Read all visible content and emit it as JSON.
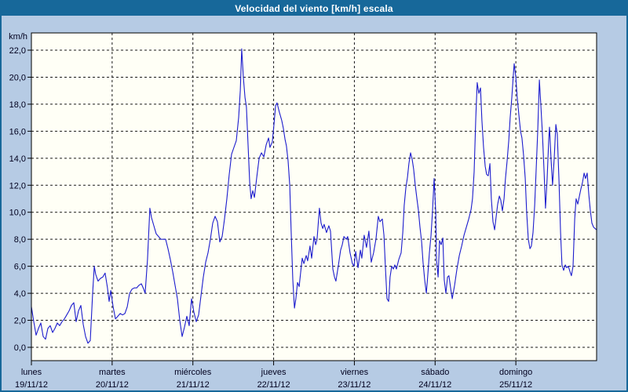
{
  "window": {
    "title": "Velocidad del viento [km/h] escala"
  },
  "colors": {
    "titlebar_bg": "#17689a",
    "frame_bg": "#b6cbe4",
    "plot_bg": "#fffff6",
    "line": "#1c1ccd",
    "grid": "#1a1a1a",
    "axis": "#000000",
    "text": "#00001e",
    "title_text": "#ffffff"
  },
  "chart_data": {
    "type": "line",
    "title": "Velocidad del viento [km/h] escala",
    "ylabel": "km/h",
    "xlabel": "",
    "ylim": [
      0,
      22
    ],
    "y_tick_step": 2,
    "y_tick_labels": [
      "0,0",
      "2,0",
      "4,0",
      "6,0",
      "8,0",
      "10,0",
      "12,0",
      "14,0",
      "16,0",
      "18,0",
      "20,0",
      "22,0"
    ],
    "x_range_hours": [
      0,
      168
    ],
    "grid": "dashed",
    "legend_position": "none",
    "x_days": [
      {
        "name": "lunes",
        "date": "19/11/12"
      },
      {
        "name": "martes",
        "date": "20/11/12"
      },
      {
        "name": "miércoles",
        "date": "21/11/12"
      },
      {
        "name": "jueves",
        "date": "22/11/12"
      },
      {
        "name": "viernes",
        "date": "23/11/12"
      },
      {
        "name": "sábado",
        "date": "24/11/12"
      },
      {
        "name": "domingo",
        "date": "25/11/12"
      }
    ],
    "series": [
      {
        "name": "Velocidad del viento [km/h]",
        "color": "#1c1ccd",
        "points_hours_kmh": [
          [
            0,
            3
          ],
          [
            0.7,
            1.9
          ],
          [
            1.4,
            0.9
          ],
          [
            2.1,
            1.4
          ],
          [
            2.8,
            1.8
          ],
          [
            3.5,
            0.8
          ],
          [
            4.2,
            0.6
          ],
          [
            4.9,
            1.4
          ],
          [
            5.6,
            1.6
          ],
          [
            6.3,
            1.1
          ],
          [
            7,
            1.4
          ],
          [
            7.7,
            1.8
          ],
          [
            8.4,
            1.6
          ],
          [
            9.1,
            1.9
          ],
          [
            9.8,
            2.1
          ],
          [
            10.5,
            2.4
          ],
          [
            11.2,
            2.7
          ],
          [
            11.9,
            3.1
          ],
          [
            12.6,
            3.3
          ],
          [
            13.3,
            1.9
          ],
          [
            14,
            2.7
          ],
          [
            14.7,
            3.1
          ],
          [
            15.4,
            1.7
          ],
          [
            16.1,
            0.8
          ],
          [
            16.8,
            0.3
          ],
          [
            17.5,
            0.5
          ],
          [
            18.2,
            4
          ],
          [
            18.7,
            6
          ],
          [
            19.1,
            5.4
          ],
          [
            19.8,
            4.9
          ],
          [
            20.5,
            5.1
          ],
          [
            21.2,
            5.2
          ],
          [
            21.9,
            5.5
          ],
          [
            22.6,
            4.4
          ],
          [
            23.1,
            3.4
          ],
          [
            23.6,
            4.2
          ],
          [
            24.3,
            3
          ],
          [
            25,
            2.1
          ],
          [
            25.7,
            2.3
          ],
          [
            26.4,
            2.5
          ],
          [
            27.1,
            2.4
          ],
          [
            27.8,
            2.5
          ],
          [
            28.5,
            3
          ],
          [
            29.2,
            4
          ],
          [
            29.9,
            4.3
          ],
          [
            30.6,
            4.4
          ],
          [
            31.3,
            4.4
          ],
          [
            32,
            4.6
          ],
          [
            32.7,
            4.7
          ],
          [
            33.4,
            4.3
          ],
          [
            33.8,
            4
          ],
          [
            34.5,
            6.5
          ],
          [
            35.2,
            10.3
          ],
          [
            35.7,
            9.6
          ],
          [
            36.4,
            9
          ],
          [
            37.1,
            8.4
          ],
          [
            37.8,
            8.2
          ],
          [
            38.5,
            8
          ],
          [
            39.2,
            8
          ],
          [
            39.9,
            8
          ],
          [
            40.6,
            7.3
          ],
          [
            41.3,
            6.5
          ],
          [
            42,
            5.6
          ],
          [
            42.7,
            4.6
          ],
          [
            43.4,
            3.6
          ],
          [
            44.1,
            2
          ],
          [
            44.8,
            0.8
          ],
          [
            45.5,
            1.5
          ],
          [
            46.2,
            2.3
          ],
          [
            46.9,
            1.6
          ],
          [
            47.6,
            3.6
          ],
          [
            48.3,
            2.6
          ],
          [
            49,
            1.9
          ],
          [
            49.7,
            2.4
          ],
          [
            50.4,
            3.8
          ],
          [
            51.1,
            5.2
          ],
          [
            51.8,
            6.3
          ],
          [
            52.5,
            7
          ],
          [
            53.2,
            8
          ],
          [
            53.9,
            9.2
          ],
          [
            54.6,
            9.7
          ],
          [
            55.3,
            9.3
          ],
          [
            56,
            7.8
          ],
          [
            56.7,
            8.2
          ],
          [
            57.4,
            9.5
          ],
          [
            58.1,
            11
          ],
          [
            58.8,
            12.8
          ],
          [
            59.5,
            14.3
          ],
          [
            60.2,
            14.8
          ],
          [
            60.9,
            15.3
          ],
          [
            61.6,
            17
          ],
          [
            62.1,
            19
          ],
          [
            62.5,
            22.1
          ],
          [
            63,
            20
          ],
          [
            63.5,
            18.5
          ],
          [
            63.9,
            17.8
          ],
          [
            64.4,
            15
          ],
          [
            64.9,
            12.2
          ],
          [
            65.3,
            11
          ],
          [
            65.8,
            11.6
          ],
          [
            66.3,
            11.1
          ],
          [
            67,
            12.6
          ],
          [
            67.7,
            14
          ],
          [
            68.4,
            14.4
          ],
          [
            69.1,
            14.1
          ],
          [
            69.8,
            15
          ],
          [
            70.5,
            15.5
          ],
          [
            70.9,
            14.8
          ],
          [
            71.6,
            15.2
          ],
          [
            72.1,
            16.5
          ],
          [
            72.6,
            17.9
          ],
          [
            73,
            18.1
          ],
          [
            73.7,
            17.4
          ],
          [
            74.4,
            16.8
          ],
          [
            74.9,
            16.2
          ],
          [
            75.4,
            15.4
          ],
          [
            75.8,
            14.9
          ],
          [
            76.3,
            13.8
          ],
          [
            76.8,
            12
          ],
          [
            77.2,
            8.6
          ],
          [
            77.7,
            5
          ],
          [
            78.2,
            2.9
          ],
          [
            78.6,
            3.6
          ],
          [
            79.1,
            4.8
          ],
          [
            79.6,
            4.5
          ],
          [
            80,
            5.5
          ],
          [
            80.5,
            6.6
          ],
          [
            81,
            6.2
          ],
          [
            81.7,
            6.8
          ],
          [
            82.1,
            6.4
          ],
          [
            82.8,
            7.5
          ],
          [
            83.3,
            6.6
          ],
          [
            84,
            8.2
          ],
          [
            84.5,
            7.6
          ],
          [
            84.9,
            8
          ],
          [
            85.6,
            10.3
          ],
          [
            86.1,
            9.2
          ],
          [
            86.6,
            8.8
          ],
          [
            87,
            9.1
          ],
          [
            87.7,
            8.5
          ],
          [
            88.4,
            9
          ],
          [
            88.9,
            8.6
          ],
          [
            89.6,
            5.8
          ],
          [
            90.1,
            5.2
          ],
          [
            90.5,
            4.9
          ],
          [
            91.2,
            6
          ],
          [
            91.9,
            7.2
          ],
          [
            92.4,
            7.6
          ],
          [
            92.9,
            8.2
          ],
          [
            93.6,
            8
          ],
          [
            94,
            8.2
          ],
          [
            94.7,
            7
          ],
          [
            95.4,
            6.2
          ],
          [
            95.9,
            6
          ],
          [
            96.4,
            7.1
          ],
          [
            97.1,
            5.9
          ],
          [
            97.8,
            7.2
          ],
          [
            98.2,
            6.6
          ],
          [
            98.9,
            8.3
          ],
          [
            99.6,
            7.4
          ],
          [
            100.3,
            8.6
          ],
          [
            101,
            6.3
          ],
          [
            101.7,
            7
          ],
          [
            102.4,
            8
          ],
          [
            103.1,
            9.7
          ],
          [
            103.6,
            9.3
          ],
          [
            104.3,
            9.5
          ],
          [
            104.8,
            8.3
          ],
          [
            105.2,
            6
          ],
          [
            105.7,
            3.6
          ],
          [
            106.2,
            3.4
          ],
          [
            106.6,
            5.2
          ],
          [
            107.1,
            6
          ],
          [
            107.6,
            5.8
          ],
          [
            108,
            6.1
          ],
          [
            108.5,
            5.8
          ],
          [
            109.2,
            6.5
          ],
          [
            109.9,
            7
          ],
          [
            110.4,
            8.5
          ],
          [
            110.8,
            10.5
          ],
          [
            111.3,
            11.8
          ],
          [
            111.8,
            12.6
          ],
          [
            112.2,
            13.6
          ],
          [
            112.7,
            14.4
          ],
          [
            113.2,
            13.9
          ],
          [
            113.6,
            13.2
          ],
          [
            114.1,
            12
          ],
          [
            114.6,
            11
          ],
          [
            115,
            10.2
          ],
          [
            115.5,
            8.9
          ],
          [
            116,
            7.8
          ],
          [
            116.4,
            6.3
          ],
          [
            116.9,
            5
          ],
          [
            117.4,
            4
          ],
          [
            117.8,
            5.3
          ],
          [
            118.3,
            7
          ],
          [
            118.8,
            8.3
          ],
          [
            119.2,
            10
          ],
          [
            119.7,
            12.5
          ],
          [
            120.2,
            10
          ],
          [
            120.4,
            6.5
          ],
          [
            120.9,
            5.2
          ],
          [
            121.3,
            7.9
          ],
          [
            121.8,
            7.6
          ],
          [
            122.3,
            8.1
          ],
          [
            122.7,
            5
          ],
          [
            123.2,
            4
          ],
          [
            123.7,
            5.2
          ],
          [
            124.1,
            5.3
          ],
          [
            124.6,
            4.4
          ],
          [
            125.1,
            3.6
          ],
          [
            125.8,
            4.6
          ],
          [
            126.5,
            5.8
          ],
          [
            127.2,
            6.8
          ],
          [
            127.9,
            7.5
          ],
          [
            128.6,
            8.3
          ],
          [
            129.3,
            8.9
          ],
          [
            130,
            9.5
          ],
          [
            130.7,
            10.2
          ],
          [
            131.1,
            11
          ],
          [
            131.6,
            13
          ],
          [
            132.1,
            17
          ],
          [
            132.5,
            19.6
          ],
          [
            133,
            18.8
          ],
          [
            133.5,
            19.2
          ],
          [
            133.9,
            16.8
          ],
          [
            134.4,
            14.8
          ],
          [
            134.9,
            13.4
          ],
          [
            135.3,
            12.8
          ],
          [
            135.8,
            12.7
          ],
          [
            136.3,
            13.6
          ],
          [
            136.7,
            11
          ],
          [
            137.2,
            9.3
          ],
          [
            137.7,
            8.7
          ],
          [
            138.1,
            9.6
          ],
          [
            138.6,
            10.6
          ],
          [
            139.1,
            11.2
          ],
          [
            139.5,
            10.9
          ],
          [
            140,
            10.1
          ],
          [
            140.5,
            11
          ],
          [
            140.9,
            12.5
          ],
          [
            141.4,
            13.8
          ],
          [
            141.9,
            15.3
          ],
          [
            142.3,
            17
          ],
          [
            142.8,
            18.5
          ],
          [
            143.3,
            20.3
          ],
          [
            143.5,
            21
          ],
          [
            144,
            20
          ],
          [
            144.4,
            18.5
          ],
          [
            144.9,
            17.2
          ],
          [
            145.4,
            16
          ],
          [
            145.8,
            15.5
          ],
          [
            146.3,
            14.2
          ],
          [
            146.8,
            12.5
          ],
          [
            147.2,
            10
          ],
          [
            147.7,
            8
          ],
          [
            148.2,
            7.3
          ],
          [
            148.6,
            7.5
          ],
          [
            149.1,
            8.5
          ],
          [
            149.6,
            10.5
          ],
          [
            150,
            13
          ],
          [
            150.5,
            16
          ],
          [
            151,
            19.8
          ],
          [
            151.4,
            18
          ],
          [
            151.9,
            15.8
          ],
          [
            152.4,
            13
          ],
          [
            152.8,
            10.3
          ],
          [
            153.3,
            12.5
          ],
          [
            153.8,
            15.5
          ],
          [
            154,
            16.3
          ],
          [
            154.5,
            13.8
          ],
          [
            154.9,
            12
          ],
          [
            155.4,
            14
          ],
          [
            155.9,
            16.5
          ],
          [
            156.3,
            15.8
          ],
          [
            156.8,
            12.5
          ],
          [
            157.3,
            8.5
          ],
          [
            157.7,
            6.1
          ],
          [
            158.2,
            5.7
          ],
          [
            158.7,
            6.1
          ],
          [
            159.1,
            5.9
          ],
          [
            159.6,
            6
          ],
          [
            160.1,
            5.6
          ],
          [
            160.5,
            5.3
          ],
          [
            161,
            6
          ],
          [
            161.5,
            9.5
          ],
          [
            161.9,
            11
          ],
          [
            162.4,
            10.6
          ],
          [
            162.9,
            11.2
          ],
          [
            163.3,
            11.7
          ],
          [
            163.8,
            12.2
          ],
          [
            164.3,
            12.9
          ],
          [
            164.7,
            12.5
          ],
          [
            165.2,
            12.9
          ],
          [
            165.7,
            11.3
          ],
          [
            166.1,
            10.2
          ],
          [
            166.6,
            9.2
          ],
          [
            167.1,
            8.9
          ],
          [
            167.5,
            8.8
          ],
          [
            168,
            8.7
          ]
        ]
      }
    ]
  }
}
